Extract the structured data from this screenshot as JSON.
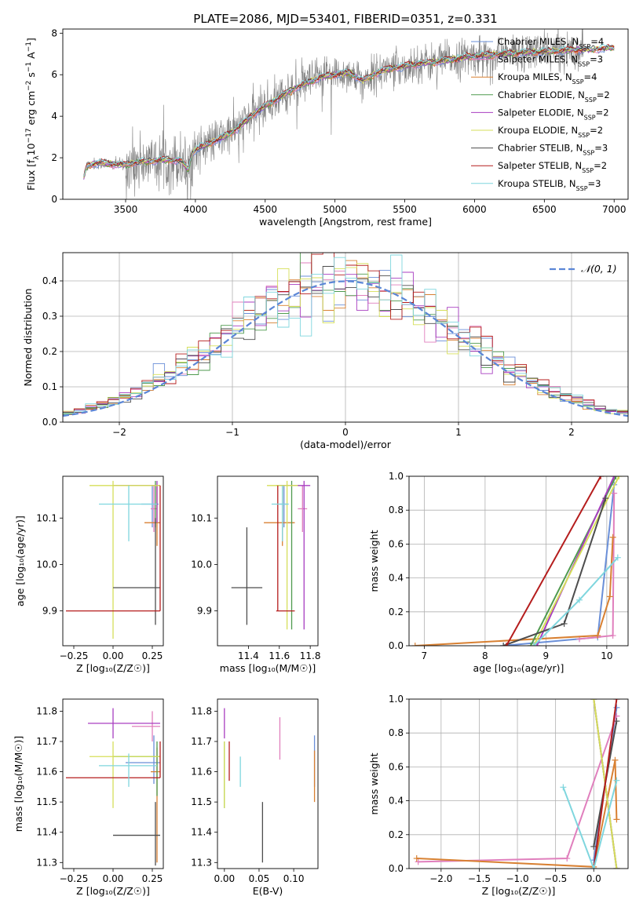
{
  "figure": {
    "title": "PLATE=2086, MJD=53401, FIBERID=0351, z=0.331"
  },
  "models": [
    {
      "name": "Chabrier MILES, N",
      "sub": "SSP",
      "tail": "=4",
      "color": "#6a8fd8"
    },
    {
      "name": "Salpeter MILES, N",
      "sub": "SSP",
      "tail": "=3",
      "color": "#e07fbd"
    },
    {
      "name": "Kroupa MILES, N",
      "sub": "SSP",
      "tail": "=4",
      "color": "#d88032"
    },
    {
      "name": "Chabrier ELODIE, N",
      "sub": "SSP",
      "tail": "=2",
      "color": "#4f9a4f"
    },
    {
      "name": "Salpeter ELODIE, N",
      "sub": "SSP",
      "tail": "=2",
      "color": "#a83ec0"
    },
    {
      "name": "Kroupa ELODIE, N",
      "sub": "SSP",
      "tail": "=2",
      "color": "#d6df5a"
    },
    {
      "name": "Chabrier STELIB, N",
      "sub": "SSP",
      "tail": "=3",
      "color": "#4d4d4d"
    },
    {
      "name": "Salpeter STELIB, N",
      "sub": "SSP",
      "tail": "=2",
      "color": "#b51d1d"
    },
    {
      "name": "Kroupa STELIB, N",
      "sub": "SSP",
      "tail": "=3",
      "color": "#7fd6de"
    }
  ],
  "chart_data": [
    {
      "id": "spectrum",
      "type": "line",
      "xlabel": "wavelength [Angstrom, rest frame]",
      "ylabel_parts": {
        "a": "Flux [f",
        "sub": "λ",
        "b": "10",
        "sup1": "−17",
        "c": " erg cm",
        "sup2": "−2",
        "d": " s",
        "sup3": "−1",
        "e": " A",
        "sup4": "−1",
        "f": "]"
      },
      "xlim": [
        3050,
        7100
      ],
      "ylim": [
        0,
        8.2
      ],
      "xticks": [
        3500,
        4000,
        4500,
        5000,
        5500,
        6000,
        6500,
        7000
      ],
      "yticks": [
        0,
        2,
        4,
        6,
        8
      ],
      "data_color": "#808080",
      "model_anchor_x": [
        3200,
        3220,
        3300,
        3400,
        3500,
        3600,
        3700,
        3800,
        3900,
        3950,
        3970,
        4000,
        4100,
        4200,
        4300,
        4400,
        4500,
        4600,
        4700,
        4800,
        4900,
        5000,
        5100,
        5200,
        5300,
        5400,
        5500,
        5600,
        5700,
        5800,
        5900,
        6000,
        6100,
        6200,
        6300,
        6400,
        6500,
        6600,
        6700,
        6800,
        6900,
        7000
      ],
      "model_anchor_y": [
        1.0,
        1.6,
        1.75,
        1.7,
        1.65,
        1.8,
        1.85,
        1.9,
        1.85,
        1.4,
        2.1,
        2.4,
        2.7,
        3.0,
        3.4,
        4.0,
        4.5,
        4.9,
        5.3,
        5.6,
        5.9,
        6.0,
        6.1,
        5.7,
        6.1,
        6.3,
        6.4,
        6.55,
        6.6,
        6.7,
        6.8,
        6.9,
        6.95,
        7.0,
        7.05,
        7.1,
        7.1,
        7.15,
        7.2,
        7.2,
        7.25,
        7.3
      ]
    },
    {
      "id": "residuals",
      "type": "line",
      "xlabel": "(data-model)/error",
      "ylabel": "Normed distribution",
      "xlim": [
        -2.5,
        2.5
      ],
      "ylim": [
        0,
        0.48
      ],
      "xticks": [
        -2,
        -1,
        0,
        1,
        2
      ],
      "yticks": [
        0.0,
        0.1,
        0.2,
        0.3,
        0.4
      ],
      "gaussian_label": "𝒩(0, 1)",
      "gaussian_color": "#5b86d6",
      "grid": true,
      "legend": "top-right"
    },
    {
      "id": "age-vs-Z",
      "type": "scatter",
      "xlabel": "Z [log₁₀(Z/Z☉)]",
      "ylabel": "age  [log₁₀(age/yr)]",
      "xlim": [
        -0.32,
        0.32
      ],
      "ylim": [
        9.825,
        10.19
      ],
      "xticks": [
        -0.25,
        0.0,
        0.25
      ],
      "yticks": [
        9.9,
        10.0,
        10.1
      ],
      "points": [
        {
          "m": 0,
          "x": 0.25,
          "y": 10.13,
          "xl": 0.18,
          "xh": 0.29,
          "yl": 10.08,
          "yh": 10.17
        },
        {
          "m": 1,
          "x": 0.26,
          "y": 10.12,
          "xl": 0.24,
          "xh": 0.28,
          "yl": 10.07,
          "yh": 10.17
        },
        {
          "m": 2,
          "x": 0.28,
          "y": 10.09,
          "xl": 0.2,
          "xh": 0.3,
          "yl": 10.04,
          "yh": 10.17
        },
        {
          "m": 3,
          "x": 0.27,
          "y": 10.17,
          "xl": 0.0,
          "xh": 0.3,
          "yl": 10.08,
          "yh": 10.18
        },
        {
          "m": 4,
          "x": 0.28,
          "y": 10.17,
          "xl": 0.0,
          "xh": 0.3,
          "yl": 10.09,
          "yh": 10.18
        },
        {
          "m": 5,
          "x": 0.0,
          "y": 10.17,
          "xl": -0.15,
          "xh": 0.3,
          "yl": 9.84,
          "yh": 10.18
        },
        {
          "m": 6,
          "x": 0.27,
          "y": 9.95,
          "xl": 0.0,
          "xh": 0.3,
          "yl": 9.87,
          "yh": 10.1
        },
        {
          "m": 7,
          "x": 0.3,
          "y": 9.9,
          "xl": -0.3,
          "xh": 0.3,
          "yl": 9.9,
          "yh": 10.17
        },
        {
          "m": 8,
          "x": 0.1,
          "y": 10.13,
          "xl": -0.09,
          "xh": 0.28,
          "yl": 10.05,
          "yh": 10.17
        }
      ]
    },
    {
      "id": "age-vs-mass",
      "type": "scatter",
      "xlabel": "mass [log₁₀(M/M☉)]",
      "ylabel": "",
      "xlim": [
        11.2,
        11.85
      ],
      "ylim": [
        9.825,
        10.19
      ],
      "xticks": [
        11.4,
        11.6,
        11.8
      ],
      "yticks": [
        9.9,
        10.0,
        10.1
      ],
      "points": [
        {
          "m": 0,
          "x": 11.63,
          "y": 10.13,
          "xl": 11.6,
          "xh": 11.66,
          "yl": 10.08,
          "yh": 10.17
        },
        {
          "m": 1,
          "x": 11.75,
          "y": 10.12,
          "xl": 11.72,
          "xh": 11.78,
          "yl": 10.07,
          "yh": 10.17
        },
        {
          "m": 2,
          "x": 11.62,
          "y": 10.09,
          "xl": 11.5,
          "xh": 11.7,
          "yl": 10.04,
          "yh": 10.17
        },
        {
          "m": 3,
          "x": 11.68,
          "y": 10.17,
          "xl": 11.58,
          "xh": 11.73,
          "yl": 9.86,
          "yh": 10.18
        },
        {
          "m": 4,
          "x": 11.76,
          "y": 10.17,
          "xl": 11.6,
          "xh": 11.8,
          "yl": 9.86,
          "yh": 10.18
        },
        {
          "m": 5,
          "x": 11.65,
          "y": 10.17,
          "xl": 11.52,
          "xh": 11.72,
          "yl": 9.86,
          "yh": 10.18
        },
        {
          "m": 6,
          "x": 11.39,
          "y": 9.95,
          "xl": 11.29,
          "xh": 11.49,
          "yl": 9.87,
          "yh": 10.08
        },
        {
          "m": 7,
          "x": 11.59,
          "y": 9.9,
          "xl": 11.58,
          "xh": 11.7,
          "yl": 9.9,
          "yh": 10.17
        },
        {
          "m": 8,
          "x": 11.62,
          "y": 10.13,
          "xl": 11.55,
          "xh": 11.66,
          "yl": 10.05,
          "yh": 10.17
        }
      ]
    },
    {
      "id": "massweight-vs-age",
      "type": "line",
      "xlabel": "age  [log₁₀(age/yr)]",
      "ylabel": "mass weight",
      "xlim": [
        6.75,
        10.35
      ],
      "ylim": [
        0,
        1.0
      ],
      "xticks": [
        7,
        8,
        9,
        10
      ],
      "yticks": [
        0.0,
        0.2,
        0.4,
        0.6,
        0.8,
        1.0
      ],
      "grid": true,
      "series": [
        {
          "m": 0,
          "x": [
            8.3,
            9.85,
            10.12
          ],
          "y": [
            0.0,
            0.05,
            0.95
          ]
        },
        {
          "m": 1,
          "x": [
            9.55,
            10.1,
            10.12
          ],
          "y": [
            0.04,
            0.06,
            0.9
          ]
        },
        {
          "m": 2,
          "x": [
            6.85,
            9.85,
            10.05,
            10.1
          ],
          "y": [
            0.0,
            0.06,
            0.29,
            0.64
          ]
        },
        {
          "m": 3,
          "x": [
            8.75,
            10.15
          ],
          "y": [
            0.0,
            1.0
          ]
        },
        {
          "m": 4,
          "x": [
            8.85,
            10.12
          ],
          "y": [
            0.0,
            1.0
          ]
        },
        {
          "m": 5,
          "x": [
            8.8,
            10.2
          ],
          "y": [
            0.0,
            1.0
          ]
        },
        {
          "m": 6,
          "x": [
            8.3,
            9.3,
            9.98
          ],
          "y": [
            0.0,
            0.13,
            0.87
          ]
        },
        {
          "m": 7,
          "x": [
            8.35,
            9.9
          ],
          "y": [
            0.0,
            1.0
          ]
        },
        {
          "m": 8,
          "x": [
            8.8,
            9.55,
            10.18
          ],
          "y": [
            0.0,
            0.27,
            0.52
          ]
        }
      ]
    },
    {
      "id": "mass-vs-Z",
      "type": "scatter",
      "xlabel": "Z [log₁₀(Z/Z☉)]",
      "ylabel": "mass [log₁₀(M/M☉)]",
      "xlim": [
        -0.32,
        0.32
      ],
      "ylim": [
        11.28,
        11.84
      ],
      "xticks": [
        -0.25,
        0.0,
        0.25
      ],
      "yticks": [
        11.3,
        11.4,
        11.5,
        11.6,
        11.7,
        11.8
      ],
      "points": [
        {
          "m": 0,
          "x": 0.26,
          "y": 11.63,
          "xl": 0.08,
          "xh": 0.3,
          "yl": 11.56,
          "yh": 11.72
        },
        {
          "m": 1,
          "x": 0.25,
          "y": 11.75,
          "xl": 0.12,
          "xh": 0.3,
          "yl": 11.7,
          "yh": 11.8
        },
        {
          "m": 2,
          "x": 0.28,
          "y": 11.6,
          "xl": 0.24,
          "xh": 0.3,
          "yl": 11.3,
          "yh": 11.68
        },
        {
          "m": 3,
          "x": 0.28,
          "y": 11.65,
          "xl": 0.0,
          "xh": 0.3,
          "yl": 11.52,
          "yh": 11.7
        },
        {
          "m": 4,
          "x": 0.0,
          "y": 11.76,
          "xl": -0.16,
          "xh": 0.3,
          "yl": 11.71,
          "yh": 11.81
        },
        {
          "m": 5,
          "x": 0.0,
          "y": 11.65,
          "xl": -0.15,
          "xh": 0.3,
          "yl": 11.48,
          "yh": 11.7
        },
        {
          "m": 6,
          "x": 0.27,
          "y": 11.39,
          "xl": 0.0,
          "xh": 0.3,
          "yl": 11.29,
          "yh": 11.5
        },
        {
          "m": 7,
          "x": 0.3,
          "y": 11.58,
          "xl": -0.3,
          "xh": 0.3,
          "yl": 11.58,
          "yh": 11.7
        },
        {
          "m": 8,
          "x": 0.1,
          "y": 11.62,
          "xl": -0.09,
          "xh": 0.28,
          "yl": 11.55,
          "yh": 11.66
        }
      ]
    },
    {
      "id": "mass-vs-EBV",
      "type": "scatter",
      "xlabel": "E(B-V)",
      "ylabel": "",
      "xlim": [
        -0.01,
        0.135
      ],
      "ylim": [
        11.28,
        11.84
      ],
      "xticks": [
        0.0,
        0.05,
        0.1
      ],
      "yticks": [
        11.3,
        11.4,
        11.5,
        11.6,
        11.7,
        11.8
      ],
      "points": [
        {
          "m": 0,
          "x": 0.13,
          "y": 11.63,
          "xl": 0.13,
          "xh": 0.13,
          "yl": 11.55,
          "yh": 11.72
        },
        {
          "m": 1,
          "x": 0.08,
          "y": 11.71,
          "xl": 0.08,
          "xh": 0.08,
          "yl": 11.64,
          "yh": 11.78
        },
        {
          "m": 2,
          "x": 0.13,
          "y": 11.58,
          "xl": 0.13,
          "xh": 0.13,
          "yl": 11.5,
          "yh": 11.67
        },
        {
          "m": 3,
          "x": 0.0,
          "y": 11.6,
          "xl": 0.0,
          "xh": 0.0,
          "yl": 11.48,
          "yh": 11.7
        },
        {
          "m": 4,
          "x": 0.0,
          "y": 11.76,
          "xl": 0.0,
          "xh": 0.0,
          "yl": 11.71,
          "yh": 11.81
        },
        {
          "m": 5,
          "x": 0.0,
          "y": 11.6,
          "xl": 0.0,
          "xh": 0.0,
          "yl": 11.48,
          "yh": 11.7
        },
        {
          "m": 6,
          "x": 0.055,
          "y": 11.4,
          "xl": 0.055,
          "xh": 0.055,
          "yl": 11.3,
          "yh": 11.5
        },
        {
          "m": 7,
          "x": 0.007,
          "y": 11.63,
          "xl": 0.007,
          "xh": 0.007,
          "yl": 11.57,
          "yh": 11.7
        },
        {
          "m": 8,
          "x": 0.023,
          "y": 11.6,
          "xl": 0.023,
          "xh": 0.023,
          "yl": 11.55,
          "yh": 11.65
        }
      ]
    },
    {
      "id": "massweight-vs-Z",
      "type": "line",
      "xlabel": "Z [log₁₀(Z/Z☉)]",
      "ylabel": "mass weight",
      "xlim": [
        -2.42,
        0.45
      ],
      "ylim": [
        0,
        1.0
      ],
      "xticks": [
        -2.0,
        -1.5,
        -1.0,
        -0.5,
        0.0
      ],
      "yticks": [
        0.0,
        0.2,
        0.4,
        0.6,
        0.8,
        1.0
      ],
      "grid": true,
      "series": [
        {
          "m": 0,
          "x": [
            0.0,
            0.3
          ],
          "y": [
            0.05,
            0.95
          ]
        },
        {
          "m": 1,
          "x": [
            -2.3,
            -0.35,
            0.3
          ],
          "y": [
            0.04,
            0.06,
            0.9
          ]
        },
        {
          "m": 2,
          "x": [
            -2.32,
            0.0,
            0.28,
            0.3
          ],
          "y": [
            0.06,
            0.01,
            0.64,
            0.29
          ]
        },
        {
          "m": 3,
          "x": [
            0.0,
            0.3
          ],
          "y": [
            1.0,
            0.0
          ]
        },
        {
          "m": 4,
          "x": [
            0.0,
            0.3
          ],
          "y": [
            1.0,
            0.0
          ]
        },
        {
          "m": 5,
          "x": [
            0.0,
            0.3
          ],
          "y": [
            1.0,
            0.0
          ]
        },
        {
          "m": 6,
          "x": [
            0.0,
            0.3
          ],
          "y": [
            0.13,
            0.87
          ]
        },
        {
          "m": 7,
          "x": [
            0.0,
            0.3
          ],
          "y": [
            0.0,
            1.0
          ]
        },
        {
          "m": 8,
          "x": [
            -0.4,
            0.0,
            0.3
          ],
          "y": [
            0.48,
            0.0,
            0.52
          ]
        }
      ]
    }
  ]
}
